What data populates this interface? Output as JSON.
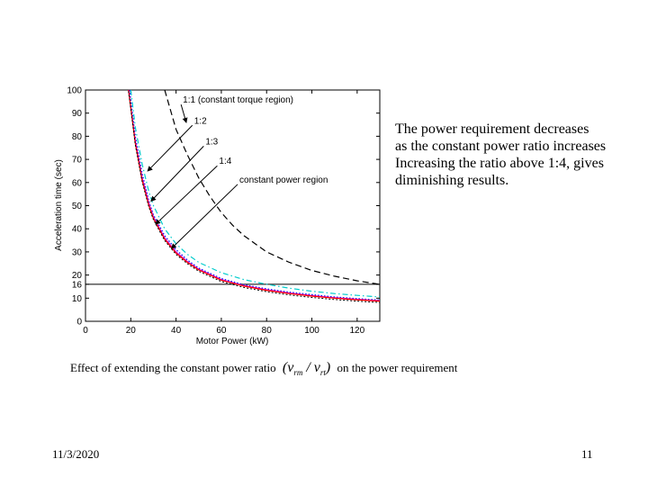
{
  "chart_data": {
    "type": "line",
    "xlabel": "Motor Power (kW)",
    "ylabel": "Acceleration time (sec)",
    "xlim": [
      0,
      130
    ],
    "ylim": [
      0,
      100
    ],
    "x_ticks": [
      0,
      20,
      40,
      60,
      80,
      100,
      120
    ],
    "y_ticks": [
      0,
      10,
      16,
      20,
      30,
      40,
      50,
      60,
      70,
      80,
      90,
      100
    ],
    "reference_line": {
      "y": 16
    },
    "series": [
      {
        "name": "1:1 (constant torque region)",
        "style": "dash-long",
        "color": "#000000",
        "x": [
          35,
          40,
          45,
          50,
          55,
          60,
          65,
          70,
          80,
          90,
          100,
          110,
          120,
          130
        ],
        "y": [
          100,
          83,
          72,
          62,
          54,
          47,
          41.5,
          37,
          30,
          25.5,
          22,
          19.5,
          17.5,
          16
        ]
      },
      {
        "name": "1:2",
        "style": "dash-dot",
        "color": "#00cccc",
        "x": [
          20,
          22,
          25,
          28,
          30,
          35,
          40,
          45,
          50,
          60,
          70,
          80,
          90,
          100,
          110,
          120,
          130
        ],
        "y": [
          100,
          84,
          68,
          56,
          50,
          40,
          33.5,
          29,
          25.5,
          21,
          18,
          16,
          14.3,
          13,
          12,
          11.2,
          10.5
        ]
      },
      {
        "name": "1:3",
        "style": "dot",
        "color": "#0000ff",
        "x": [
          19.5,
          22,
          25,
          28,
          30,
          35,
          40,
          45,
          50,
          60,
          70,
          80,
          90,
          100,
          110,
          120,
          130
        ],
        "y": [
          100,
          80,
          64,
          52,
          46,
          37,
          31,
          26.5,
          23,
          18.5,
          15.8,
          14,
          12.6,
          11.5,
          10.5,
          9.8,
          9.2
        ]
      },
      {
        "name": "1:4",
        "style": "solid",
        "color": "#cc00cc",
        "x": [
          19,
          22,
          25,
          28,
          30,
          35,
          40,
          45,
          50,
          60,
          70,
          80,
          90,
          100,
          110,
          120,
          130
        ],
        "y": [
          100,
          78,
          62,
          51,
          45,
          36,
          30,
          25.8,
          22.5,
          18,
          15.4,
          13.6,
          12.2,
          11.1,
          10.2,
          9.5,
          8.9
        ]
      },
      {
        "name": "constant power region",
        "style": "solid",
        "color": "#ff0000",
        "x": [
          19,
          22,
          25,
          28,
          30,
          35,
          40,
          45,
          50,
          60,
          70,
          80,
          90,
          100,
          110,
          120,
          130
        ],
        "y": [
          100,
          77,
          61,
          50,
          44.5,
          35.5,
          29.5,
          25.5,
          22.2,
          17.8,
          15.2,
          13.4,
          12,
          10.9,
          10,
          9.3,
          8.7
        ]
      }
    ],
    "annotations": [
      {
        "text": "1:1 (constant torque region)",
        "x": 43,
        "y": 94.5,
        "arrow_to": [
          44.5,
          86
        ]
      },
      {
        "text": "1:2",
        "x": 48,
        "y": 85.5,
        "arrow_to": [
          27.5,
          65
        ]
      },
      {
        "text": "1:3",
        "x": 53,
        "y": 76.5,
        "arrow_to": [
          29,
          52
        ]
      },
      {
        "text": "1:4",
        "x": 59,
        "y": 68,
        "arrow_to": [
          31,
          42
        ]
      },
      {
        "text": "constant power region",
        "x": 68,
        "y": 60,
        "arrow_to": [
          38,
          31.5
        ]
      }
    ]
  },
  "side_text": [
    "The power requirement decreases",
    "as the constant power ratio increases",
    "Increasing the ratio above 1:4, gives",
    "diminishing results."
  ],
  "caption": {
    "before": "Effect of extending the constant power ratio",
    "formula_left": "(",
    "v1": "v",
    "v1_sub": "rm",
    "slash": "/",
    "v2": "v",
    "v2_sub": "rt",
    "formula_right": ")",
    "after": "on the power requirement"
  },
  "footer": {
    "date": "11/3/2020",
    "page": "11"
  }
}
